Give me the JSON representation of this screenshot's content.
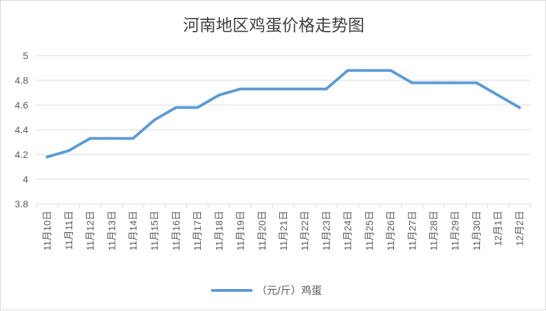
{
  "chart_data": {
    "type": "line",
    "title": "河南地区鸡蛋价格走势图",
    "categories": [
      "11月10日",
      "11月11日",
      "11月12日",
      "11月13日",
      "11月14日",
      "11月15日",
      "11月16日",
      "11月17日",
      "11月18日",
      "11月19日",
      "11月20日",
      "11月21日",
      "11月22日",
      "11月23日",
      "11月24日",
      "11月25日",
      "11月26日",
      "11月27日",
      "11月28日",
      "11月29日",
      "11月30日",
      "12月1日",
      "12月2日"
    ],
    "series": [
      {
        "name": "（元/斤）鸡蛋",
        "values": [
          4.18,
          4.23,
          4.33,
          4.33,
          4.33,
          4.48,
          4.58,
          4.58,
          4.68,
          4.73,
          4.73,
          4.73,
          4.73,
          4.73,
          4.88,
          4.88,
          4.88,
          4.78,
          4.78,
          4.78,
          4.78,
          4.68,
          4.58
        ]
      }
    ],
    "ylim": [
      3.8,
      5
    ],
    "yticks": [
      3.8,
      4,
      4.2,
      4.4,
      4.6,
      4.8,
      5
    ],
    "ytick_labels": [
      "3.8",
      "4",
      "4.2",
      "4.4",
      "4.6",
      "4.8",
      "5"
    ],
    "grid": true,
    "legend_position": "bottom",
    "colors": {
      "line": "#5b9bd5",
      "grid": "#d9d9d9",
      "text": "#595959"
    }
  }
}
